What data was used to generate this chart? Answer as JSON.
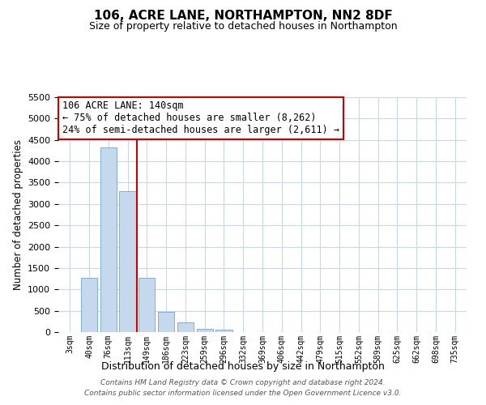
{
  "title": "106, ACRE LANE, NORTHAMPTON, NN2 8DF",
  "subtitle": "Size of property relative to detached houses in Northampton",
  "xlabel": "Distribution of detached houses by size in Northampton",
  "ylabel": "Number of detached properties",
  "footer_line1": "Contains HM Land Registry data © Crown copyright and database right 2024.",
  "footer_line2": "Contains public sector information licensed under the Open Government Licence v3.0.",
  "annotation_title": "106 ACRE LANE: 140sqm",
  "annotation_line1": "← 75% of detached houses are smaller (8,262)",
  "annotation_line2": "24% of semi-detached houses are larger (2,611) →",
  "bar_labels": [
    "3sqm",
    "40sqm",
    "76sqm",
    "113sqm",
    "149sqm",
    "186sqm",
    "223sqm",
    "259sqm",
    "296sqm",
    "332sqm",
    "369sqm",
    "406sqm",
    "442sqm",
    "479sqm",
    "515sqm",
    "552sqm",
    "589sqm",
    "625sqm",
    "662sqm",
    "698sqm",
    "735sqm"
  ],
  "bar_values": [
    0,
    1270,
    4330,
    3300,
    1280,
    480,
    230,
    80,
    50,
    0,
    0,
    0,
    0,
    0,
    0,
    0,
    0,
    0,
    0,
    0,
    0
  ],
  "bar_color": "#c5d8ed",
  "bar_edge_color": "#7ab0d4",
  "vline_x_index": 3.5,
  "vline_color": "#cc0000",
  "ylim": [
    0,
    5500
  ],
  "yticks": [
    0,
    500,
    1000,
    1500,
    2000,
    2500,
    3000,
    3500,
    4000,
    4500,
    5000,
    5500
  ],
  "bg_color": "#ffffff",
  "grid_color": "#c8d8e8",
  "annotation_box_color": "#ffffff",
  "annotation_box_edge": "#cc0000"
}
